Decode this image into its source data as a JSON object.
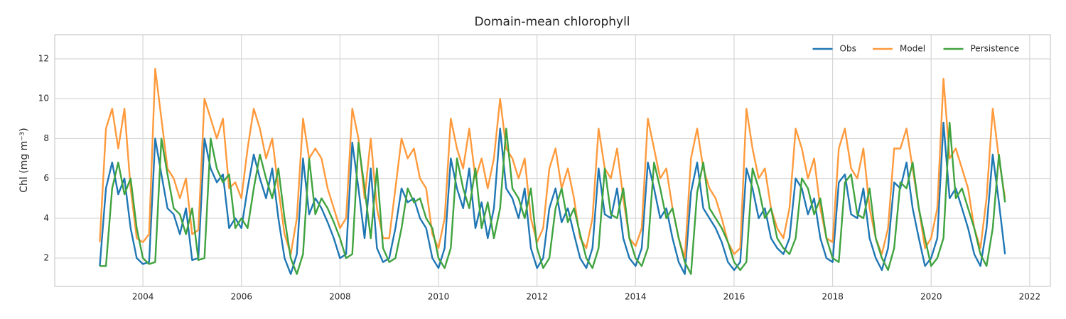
{
  "chart_data": {
    "type": "line",
    "title": "Domain-mean chlorophyll",
    "ylabel": "Chl (mg m⁻³)",
    "x": [
      2003.125,
      2003.25,
      2003.375,
      2003.5,
      2003.625,
      2003.75,
      2003.875,
      2004,
      2004.125,
      2004.25,
      2004.375,
      2004.5,
      2004.625,
      2004.75,
      2004.875,
      2005,
      2005.125,
      2005.25,
      2005.375,
      2005.5,
      2005.625,
      2005.75,
      2005.875,
      2006,
      2006.125,
      2006.25,
      2006.375,
      2006.5,
      2006.625,
      2006.75,
      2006.875,
      2007,
      2007.125,
      2007.25,
      2007.375,
      2007.5,
      2007.625,
      2007.75,
      2007.875,
      2008,
      2008.125,
      2008.25,
      2008.375,
      2008.5,
      2008.625,
      2008.75,
      2008.875,
      2009,
      2009.125,
      2009.25,
      2009.375,
      2009.5,
      2009.625,
      2009.75,
      2009.875,
      2010,
      2010.125,
      2010.25,
      2010.375,
      2010.5,
      2010.625,
      2010.75,
      2010.875,
      2011,
      2011.125,
      2011.25,
      2011.375,
      2011.5,
      2011.625,
      2011.75,
      2011.875,
      2012,
      2012.125,
      2012.25,
      2012.375,
      2012.5,
      2012.625,
      2012.75,
      2012.875,
      2013,
      2013.125,
      2013.25,
      2013.375,
      2013.5,
      2013.625,
      2013.75,
      2013.875,
      2014,
      2014.125,
      2014.25,
      2014.375,
      2014.5,
      2014.625,
      2014.75,
      2014.875,
      2015,
      2015.125,
      2015.25,
      2015.375,
      2015.5,
      2015.625,
      2015.75,
      2015.875,
      2016,
      2016.125,
      2016.25,
      2016.375,
      2016.5,
      2016.625,
      2016.75,
      2016.875,
      2017,
      2017.125,
      2017.25,
      2017.375,
      2017.5,
      2017.625,
      2017.75,
      2017.875,
      2018,
      2018.125,
      2018.25,
      2018.375,
      2018.5,
      2018.625,
      2018.75,
      2018.875,
      2019,
      2019.125,
      2019.25,
      2019.375,
      2019.5,
      2019.625,
      2019.75,
      2019.875,
      2020,
      2020.125,
      2020.25,
      2020.375,
      2020.5,
      2020.625,
      2020.75,
      2020.875,
      2021,
      2021.125,
      2021.25,
      2021.375,
      2021.5
    ],
    "series": [
      {
        "name": "Obs",
        "color": "#1f77b4",
        "values": [
          1.6,
          5.5,
          6.8,
          5.2,
          6.0,
          3.5,
          2.0,
          1.7,
          1.8,
          8.0,
          6.2,
          4.5,
          4.2,
          3.2,
          4.5,
          1.9,
          2.0,
          8.0,
          6.5,
          5.8,
          6.2,
          3.5,
          4.0,
          3.5,
          5.5,
          7.2,
          6.0,
          5.0,
          6.5,
          4.0,
          2.0,
          1.2,
          2.2,
          7.0,
          4.2,
          5.0,
          4.5,
          3.8,
          3.0,
          2.0,
          2.2,
          7.8,
          5.5,
          3.0,
          6.5,
          2.5,
          1.8,
          2.0,
          3.5,
          5.5,
          4.8,
          5.0,
          4.0,
          3.5,
          2.0,
          1.5,
          2.5,
          7.0,
          5.5,
          4.5,
          6.5,
          3.5,
          4.8,
          3.0,
          4.5,
          8.5,
          5.5,
          5.0,
          4.0,
          5.5,
          2.5,
          1.5,
          2.0,
          4.5,
          5.5,
          3.8,
          4.5,
          3.2,
          2.0,
          1.5,
          2.5,
          6.5,
          4.2,
          4.0,
          5.5,
          3.0,
          2.0,
          1.6,
          2.5,
          6.8,
          5.5,
          4.0,
          4.5,
          3.0,
          1.8,
          1.2,
          5.3,
          6.8,
          4.5,
          4.0,
          3.5,
          2.8,
          1.8,
          1.4,
          1.8,
          6.5,
          5.5,
          4.0,
          4.5,
          3.0,
          2.5,
          2.2,
          3.0,
          6.0,
          5.5,
          4.2,
          5.0,
          3.0,
          2.0,
          1.8,
          5.8,
          6.2,
          4.2,
          4.0,
          5.5,
          3.0,
          2.0,
          1.4,
          2.5,
          5.8,
          5.5,
          6.8,
          4.5,
          3.0,
          1.6,
          2.0,
          3.0,
          8.8,
          5.0,
          5.5,
          4.5,
          3.5,
          2.2,
          1.6,
          3.5,
          7.2,
          4.8,
          2.2
        ]
      },
      {
        "name": "Model",
        "color": "#ff9a3c",
        "values": [
          2.8,
          8.5,
          9.5,
          7.5,
          9.5,
          5.5,
          3.0,
          2.8,
          3.2,
          11.5,
          9.0,
          6.5,
          6.0,
          5.0,
          6.0,
          3.2,
          3.4,
          10.0,
          9.0,
          8.0,
          9.0,
          5.5,
          5.8,
          5.0,
          7.5,
          9.5,
          8.5,
          7.0,
          8.0,
          5.5,
          3.2,
          2.2,
          4.0,
          9.0,
          7.0,
          7.5,
          7.0,
          5.5,
          4.5,
          3.5,
          4.0,
          9.5,
          8.0,
          5.0,
          8.0,
          4.5,
          3.0,
          3.0,
          5.5,
          8.0,
          7.0,
          7.5,
          6.0,
          5.5,
          3.2,
          2.5,
          4.0,
          9.0,
          7.5,
          6.5,
          8.5,
          6.0,
          7.0,
          5.5,
          7.0,
          10.0,
          7.5,
          7.0,
          6.0,
          7.0,
          4.0,
          2.8,
          3.5,
          6.5,
          7.5,
          5.5,
          6.5,
          5.0,
          3.0,
          2.5,
          4.0,
          8.5,
          6.5,
          6.0,
          7.5,
          5.0,
          3.0,
          2.6,
          3.5,
          9.0,
          7.5,
          6.0,
          6.5,
          4.5,
          3.0,
          2.0,
          7.0,
          8.5,
          6.5,
          5.5,
          5.0,
          4.0,
          2.8,
          2.2,
          2.5,
          9.5,
          7.5,
          6.0,
          6.5,
          4.5,
          3.5,
          3.0,
          4.5,
          8.5,
          7.5,
          6.0,
          7.0,
          4.5,
          3.0,
          2.8,
          7.5,
          8.5,
          6.5,
          6.0,
          7.5,
          4.5,
          3.0,
          2.2,
          3.5,
          7.5,
          7.5,
          8.5,
          6.5,
          4.5,
          2.5,
          3.0,
          4.5,
          11.0,
          7.0,
          7.5,
          6.5,
          5.5,
          3.5,
          2.5,
          5.0,
          9.5,
          7.0,
          5.0
        ]
      },
      {
        "name": "Persistence",
        "color": "#3fa33f",
        "values": [
          1.6,
          1.6,
          5.5,
          6.8,
          5.2,
          6.0,
          3.5,
          2.0,
          1.7,
          1.8,
          8.0,
          6.2,
          4.5,
          4.2,
          3.2,
          4.5,
          1.9,
          2.0,
          8.0,
          6.5,
          5.8,
          6.2,
          3.5,
          4.0,
          3.5,
          5.5,
          7.2,
          6.0,
          5.0,
          6.5,
          4.0,
          2.0,
          1.2,
          2.2,
          7.0,
          4.2,
          5.0,
          4.5,
          3.8,
          3.0,
          2.0,
          2.2,
          7.8,
          5.5,
          3.0,
          6.5,
          2.5,
          1.8,
          2.0,
          3.5,
          5.5,
          4.8,
          5.0,
          4.0,
          3.5,
          2.0,
          1.5,
          2.5,
          7.0,
          5.5,
          4.5,
          6.5,
          3.5,
          4.8,
          3.0,
          4.5,
          8.5,
          5.5,
          5.0,
          4.0,
          5.5,
          2.5,
          1.5,
          2.0,
          4.5,
          5.5,
          3.8,
          4.5,
          3.2,
          2.0,
          1.5,
          2.5,
          6.5,
          4.2,
          4.0,
          5.5,
          3.0,
          2.0,
          1.6,
          2.5,
          6.8,
          5.5,
          4.0,
          4.5,
          3.0,
          1.8,
          1.2,
          5.3,
          6.8,
          4.5,
          4.0,
          3.5,
          2.8,
          1.8,
          1.4,
          1.8,
          6.5,
          5.5,
          4.0,
          4.5,
          3.0,
          2.5,
          2.2,
          3.0,
          6.0,
          5.5,
          4.2,
          5.0,
          3.0,
          2.0,
          1.8,
          5.8,
          6.2,
          4.2,
          4.0,
          5.5,
          3.0,
          2.0,
          1.4,
          2.5,
          5.8,
          5.5,
          6.8,
          4.5,
          3.0,
          1.6,
          2.0,
          3.0,
          8.8,
          5.0,
          5.5,
          4.5,
          3.5,
          2.2,
          1.6,
          3.5,
          7.2,
          4.8
        ]
      }
    ],
    "xlim": [
      2002.21,
      2022.42
    ],
    "xticks": [
      2004,
      2006,
      2008,
      2010,
      2012,
      2014,
      2016,
      2018,
      2020,
      2022
    ],
    "ylim": [
      0.58,
      13.21
    ],
    "yticks": [
      2,
      4,
      6,
      8,
      10,
      12
    ],
    "grid": true,
    "legend": "upper right"
  }
}
